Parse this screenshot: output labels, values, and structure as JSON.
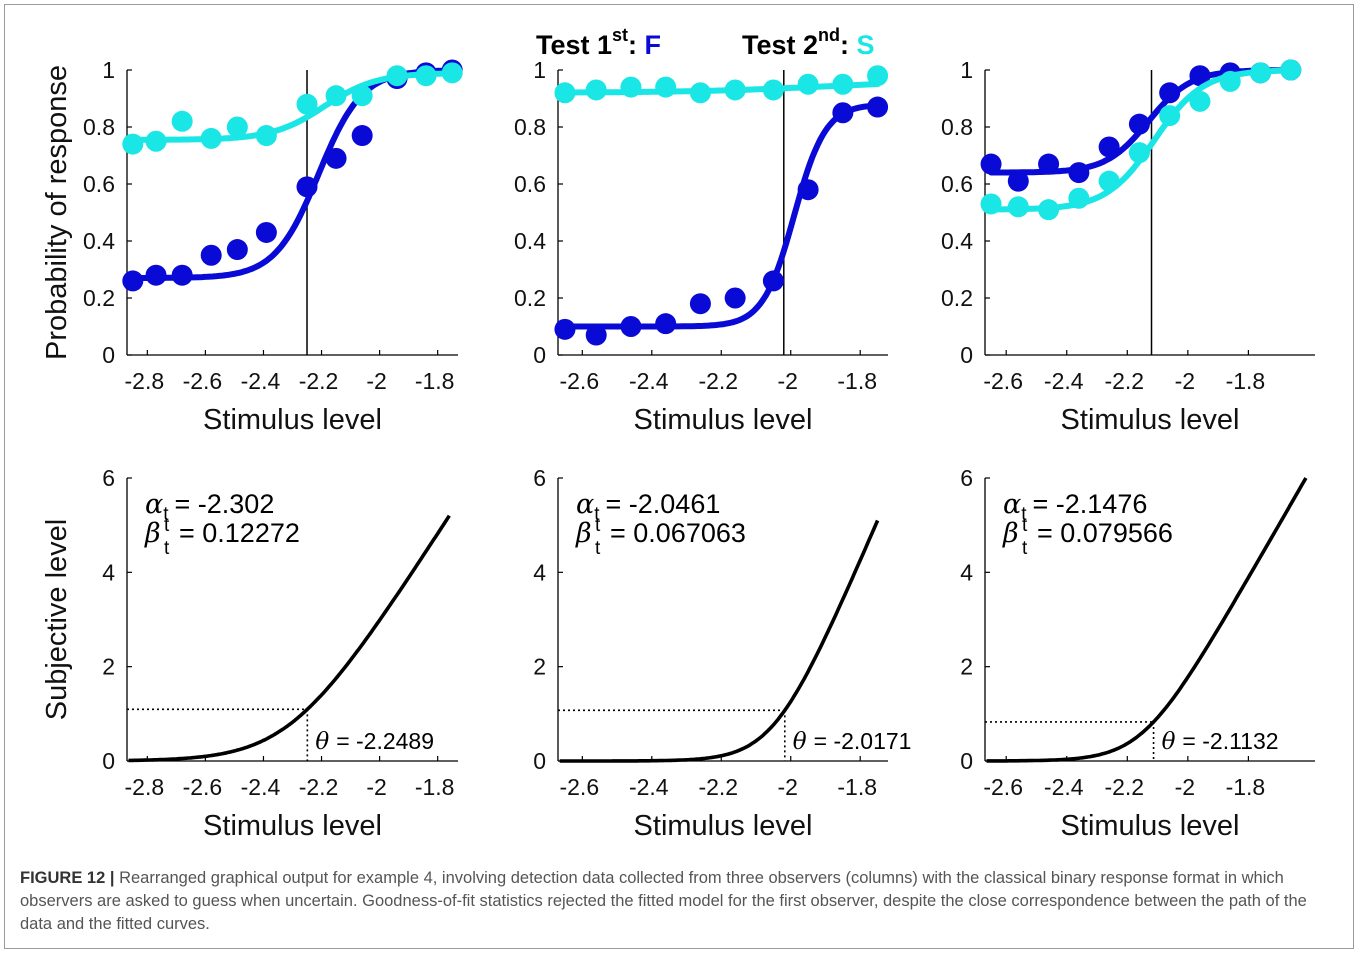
{
  "legend": {
    "f_prefix": "Test 1",
    "f_sup": "st",
    "f_sep": ": ",
    "f_letter": "F",
    "s_prefix": "Test 2",
    "s_sup": "nd",
    "s_sep": ": ",
    "s_letter": "S",
    "f_color": "#0A0AD6",
    "s_color": "#1AE6E6"
  },
  "caption": {
    "label": "FIGURE 12 |",
    "text": " Rearranged graphical output for example 4, involving detection data collected from three observers (columns) with the classical binary response format in which observers are asked to guess when uncertain. Goodness-of-fit statistics rejected the fitted model for the first observer, despite the close correspondence between the path of the data and the fitted curves."
  },
  "chart_data": [
    {
      "type": "scatter",
      "panel": "top-left",
      "xlabel": "Stimulus level",
      "ylabel": "Probability of response",
      "xlim": [
        -2.87,
        -1.73
      ],
      "ylim": [
        0,
        1
      ],
      "xticks": [
        -2.8,
        -2.6,
        -2.4,
        -2.2,
        -2,
        -1.8
      ],
      "xtick_labels": [
        "-2.8",
        "-2.6",
        "-2.4",
        "-2.2",
        "-2",
        "-1.8"
      ],
      "yticks": [
        0,
        0.2,
        0.4,
        0.6,
        0.8,
        1
      ],
      "ytick_labels": [
        "0",
        "0.2",
        "0.4",
        "0.6",
        "0.8",
        "1"
      ],
      "vline": -2.25,
      "series": [
        {
          "color": "#0A0AD6",
          "x": [
            -2.85,
            -2.77,
            -2.68,
            -2.58,
            -2.49,
            -2.39,
            -2.25,
            -2.15,
            -2.06,
            -1.94,
            -1.84,
            -1.75
          ],
          "y": [
            0.26,
            0.28,
            0.28,
            0.35,
            0.37,
            0.43,
            0.59,
            0.69,
            0.77,
            0.97,
            0.99,
            1.0
          ],
          "fit": {
            "base": 0.27,
            "top": 1.0,
            "mid": -2.21,
            "slope": 0.075
          }
        },
        {
          "color": "#1AE6E6",
          "x": [
            -2.85,
            -2.77,
            -2.68,
            -2.58,
            -2.49,
            -2.39,
            -2.25,
            -2.15,
            -2.06,
            -1.94,
            -1.84,
            -1.75
          ],
          "y": [
            0.74,
            0.75,
            0.82,
            0.76,
            0.8,
            0.77,
            0.88,
            0.91,
            0.91,
            0.98,
            0.98,
            0.99
          ],
          "fit": {
            "base": 0.755,
            "top": 0.99,
            "mid": -2.19,
            "slope": 0.09
          }
        }
      ]
    },
    {
      "type": "scatter",
      "panel": "top-middle",
      "xlabel": "Stimulus level",
      "ylabel": "",
      "xlim": [
        -2.67,
        -1.72
      ],
      "ylim": [
        0,
        1
      ],
      "xticks": [
        -2.6,
        -2.4,
        -2.2,
        -2,
        -1.8
      ],
      "xtick_labels": [
        "-2.6",
        "-2.4",
        "-2.2",
        "-2",
        "-1.8"
      ],
      "yticks": [
        0,
        0.2,
        0.4,
        0.6,
        0.8,
        1
      ],
      "ytick_labels": [
        "0",
        "0.2",
        "0.4",
        "0.6",
        "0.8",
        "1"
      ],
      "vline": -2.02,
      "series": [
        {
          "color": "#0A0AD6",
          "x": [
            -2.65,
            -2.56,
            -2.46,
            -2.36,
            -2.26,
            -2.16,
            -2.05,
            -1.95,
            -1.85,
            -1.75
          ],
          "y": [
            0.09,
            0.07,
            0.1,
            0.11,
            0.18,
            0.2,
            0.26,
            0.58,
            0.85,
            0.87
          ],
          "fit": {
            "base": 0.1,
            "top": 0.88,
            "mid": -1.99,
            "slope": 0.045
          }
        },
        {
          "color": "#1AE6E6",
          "x": [
            -2.65,
            -2.56,
            -2.46,
            -2.36,
            -2.26,
            -2.16,
            -2.05,
            -1.95,
            -1.85,
            -1.75
          ],
          "y": [
            0.92,
            0.93,
            0.94,
            0.94,
            0.92,
            0.93,
            0.93,
            0.95,
            0.95,
            0.98
          ],
          "fit": {
            "base": 0.92,
            "top": 0.965,
            "mid": -1.9,
            "slope": 0.2
          }
        }
      ]
    },
    {
      "type": "scatter",
      "panel": "top-right",
      "xlabel": "Stimulus level",
      "ylabel": "",
      "xlim": [
        -2.67,
        -1.58
      ],
      "ylim": [
        0,
        1
      ],
      "xticks": [
        -2.6,
        -2.4,
        -2.2,
        -2,
        -1.8
      ],
      "xtick_labels": [
        "-2.6",
        "-2.4",
        "-2.2",
        "-2",
        "-1.8"
      ],
      "yticks": [
        0,
        0.2,
        0.4,
        0.6,
        0.8,
        1
      ],
      "ytick_labels": [
        "0",
        "0.2",
        "0.4",
        "0.6",
        "0.8",
        "1"
      ],
      "vline": -2.12,
      "series": [
        {
          "color": "#0A0AD6",
          "x": [
            -2.65,
            -2.56,
            -2.46,
            -2.36,
            -2.26,
            -2.16,
            -2.06,
            -1.96,
            -1.86,
            -1.76,
            -1.66
          ],
          "y": [
            0.67,
            0.61,
            0.67,
            0.64,
            0.73,
            0.81,
            0.92,
            0.98,
            0.99,
            0.99,
            1.0
          ],
          "fit": {
            "base": 0.64,
            "top": 1.0,
            "mid": -2.13,
            "slope": 0.07
          }
        },
        {
          "color": "#1AE6E6",
          "x": [
            -2.65,
            -2.56,
            -2.46,
            -2.36,
            -2.26,
            -2.16,
            -2.06,
            -1.96,
            -1.86,
            -1.76,
            -1.66
          ],
          "y": [
            0.53,
            0.52,
            0.51,
            0.55,
            0.61,
            0.71,
            0.84,
            0.89,
            0.96,
            0.99,
            1.0
          ],
          "fit": {
            "base": 0.51,
            "top": 1.0,
            "mid": -2.11,
            "slope": 0.08
          }
        }
      ]
    },
    {
      "type": "line",
      "panel": "bottom-left",
      "xlabel": "Stimulus level",
      "ylabel": "Subjective level",
      "xlim": [
        -2.87,
        -1.73
      ],
      "ylim": [
        0,
        6
      ],
      "xticks": [
        -2.8,
        -2.6,
        -2.4,
        -2.2,
        -2,
        -1.8
      ],
      "xtick_labels": [
        "-2.8",
        "-2.6",
        "-2.4",
        "-2.2",
        "-2",
        "-1.8"
      ],
      "yticks": [
        0,
        2,
        4,
        6
      ],
      "ytick_labels": [
        "0",
        "2",
        "4",
        "6"
      ],
      "alpha_label": "= -2.302",
      "beta_label": "= 0.12272",
      "theta_label": "= -2.2489",
      "params": {
        "alpha": -2.302,
        "beta": 0.12272,
        "theta": -2.2489
      },
      "dotted_y": 1.4,
      "curve_end_y": 5.2
    },
    {
      "type": "line",
      "panel": "bottom-middle",
      "xlabel": "Stimulus level",
      "ylabel": "",
      "xlim": [
        -2.67,
        -1.72
      ],
      "ylim": [
        0,
        6
      ],
      "xticks": [
        -2.6,
        -2.4,
        -2.2,
        -2,
        -1.8
      ],
      "xtick_labels": [
        "-2.6",
        "-2.4",
        "-2.2",
        "-2",
        "-1.8"
      ],
      "yticks": [
        0,
        2,
        4,
        6
      ],
      "ytick_labels": [
        "0",
        "2",
        "4",
        "6"
      ],
      "alpha_label": "= -2.0461",
      "beta_label": "= 0.067063",
      "theta_label": "= -2.0171",
      "params": {
        "alpha": -2.0461,
        "beta": 0.067063,
        "theta": -2.0171
      },
      "dotted_y": 1.4,
      "curve_end_y": 5.1
    },
    {
      "type": "line",
      "panel": "bottom-right",
      "xlabel": "Stimulus level",
      "ylabel": "",
      "xlim": [
        -2.67,
        -1.58
      ],
      "ylim": [
        0,
        6
      ],
      "xticks": [
        -2.6,
        -2.4,
        -2.2,
        -2,
        -1.8
      ],
      "xtick_labels": [
        "-2.6",
        "-2.4",
        "-2.2",
        "-2",
        "-1.8"
      ],
      "yticks": [
        0,
        2,
        4,
        6
      ],
      "ytick_labels": [
        "0",
        "2",
        "4",
        "6"
      ],
      "alpha_label": "= -2.1476",
      "beta_label": "= 0.079566",
      "theta_label": "= -2.1132",
      "params": {
        "alpha": -2.1476,
        "beta": 0.079566,
        "theta": -2.1132
      },
      "dotted_y": 1.4,
      "curve_end_y": 6.0
    }
  ]
}
